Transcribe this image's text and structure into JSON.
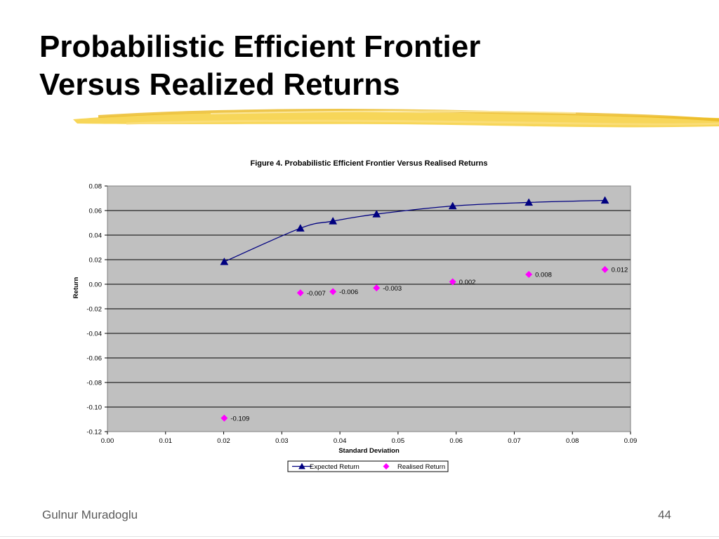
{
  "slide": {
    "title_line1": "Probabilistic Efficient Frontier",
    "title_line2": "Versus Realized Returns",
    "footer_author": "Gulnur Muradoglu",
    "page_number": "44",
    "accent_color": "#f2c12e"
  },
  "chart_data": {
    "type": "scatter",
    "title": "Figure 4. Probabilistic Efficient Frontier Versus Realised Returns",
    "xlabel": "Standard Deviation",
    "ylabel": "Return",
    "xlim": [
      0,
      0.09
    ],
    "ylim": [
      -0.12,
      0.08
    ],
    "xticks": [
      "0.00",
      "0.01",
      "0.02",
      "0.03",
      "0.04",
      "0.05",
      "0.06",
      "0.07",
      "0.08",
      "0.09"
    ],
    "yticks": [
      "0.08",
      "0.06",
      "0.04",
      "0.02",
      "0.00",
      "-0.02",
      "-0.04",
      "-0.06",
      "-0.08",
      "-0.10",
      "-0.12"
    ],
    "grid": "horizontal",
    "legend_position": "bottom",
    "plot_background": "#c0c0c0",
    "series": [
      {
        "name": "Expected Return",
        "style": "line-triangle",
        "color": "#000080",
        "points": [
          {
            "x": 0.0201,
            "y": 0.0183
          },
          {
            "x": 0.0332,
            "y": 0.0456
          },
          {
            "x": 0.0388,
            "y": 0.0514
          },
          {
            "x": 0.0463,
            "y": 0.0571
          },
          {
            "x": 0.0594,
            "y": 0.0637
          },
          {
            "x": 0.0725,
            "y": 0.0666
          },
          {
            "x": 0.0856,
            "y": 0.0683
          }
        ]
      },
      {
        "name": "Realised Return",
        "style": "marker-diamond",
        "color": "#ff00ff",
        "points": [
          {
            "x": 0.0201,
            "y": -0.109,
            "label": "-0.109"
          },
          {
            "x": 0.0332,
            "y": -0.007,
            "label": "-0.007"
          },
          {
            "x": 0.0388,
            "y": -0.006,
            "label": "-0.006"
          },
          {
            "x": 0.0463,
            "y": -0.003,
            "label": "-0.003"
          },
          {
            "x": 0.0594,
            "y": 0.002,
            "label": "0.002"
          },
          {
            "x": 0.0725,
            "y": 0.008,
            "label": "0.008"
          },
          {
            "x": 0.0856,
            "y": 0.012,
            "label": "0.012"
          }
        ]
      }
    ]
  }
}
